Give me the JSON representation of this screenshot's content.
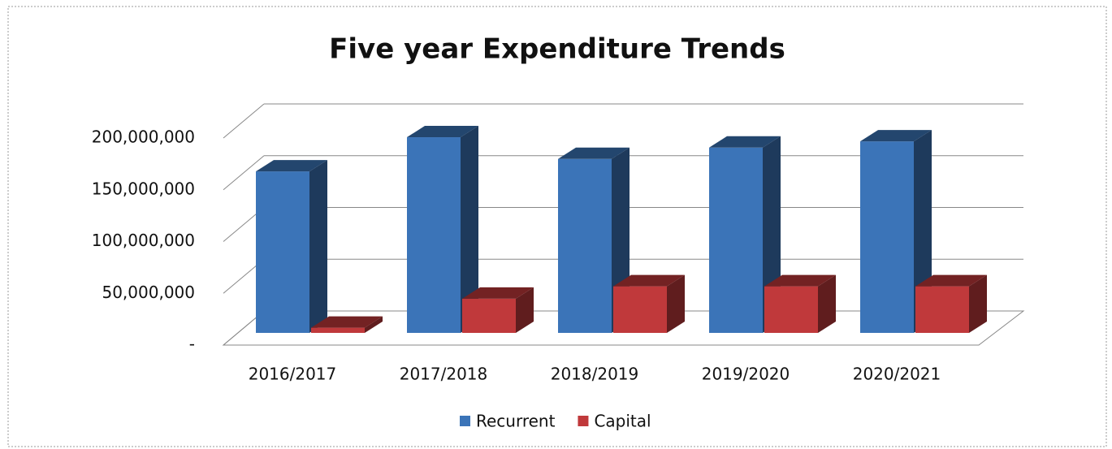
{
  "chart_data": {
    "type": "bar3d",
    "title": "Five year Expenditure Trends",
    "categories": [
      "2016/2017",
      "2017/2018",
      "2018/2019",
      "2019/2020",
      "2020/2021"
    ],
    "series": [
      {
        "name": "Recurrent",
        "color": "#3b74b8",
        "values": [
          156000000,
          189000000,
          168000000,
          179000000,
          185000000
        ]
      },
      {
        "name": "Capital",
        "color": "#c0393b",
        "values": [
          5000000,
          33000000,
          45000000,
          45000000,
          45000000
        ]
      }
    ],
    "ylim": [
      0,
      200000000
    ],
    "yticks": [
      {
        "value": 0,
        "label": "-"
      },
      {
        "value": 50000000,
        "label": "50,000,000"
      },
      {
        "value": 100000000,
        "label": "100,000,000"
      },
      {
        "value": 150000000,
        "label": "150,000,000"
      },
      {
        "value": 200000000,
        "label": "200,000,000"
      }
    ],
    "grid": true,
    "legend": "bottom"
  }
}
